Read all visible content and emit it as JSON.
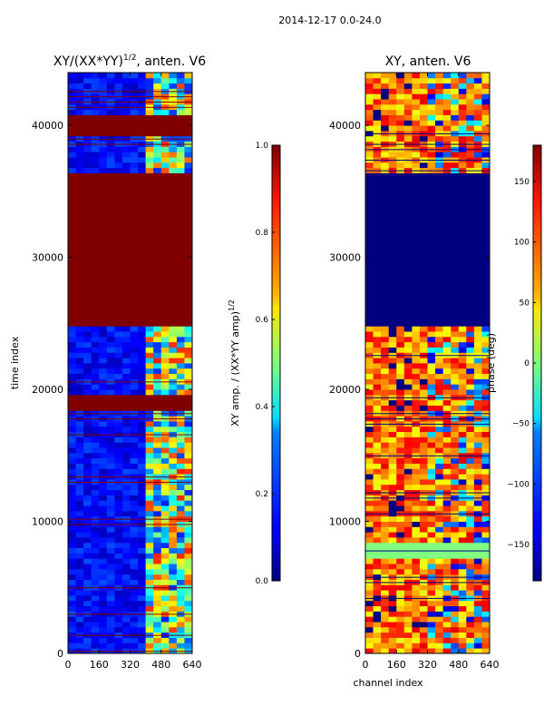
{
  "suptitle": "2014-12-17 0.0-24.0",
  "chart_data": [
    {
      "type": "heatmap",
      "title": "XY/(XX*YY)^{1/2}, anten. V6",
      "title_main": "XY/(XX*YY)",
      "title_sup": "1/2",
      "title_tail": ", anten. V6",
      "xlabel": "",
      "ylabel": "time index",
      "xlim": [
        0,
        640
      ],
      "ylim": [
        0,
        44000
      ],
      "xticks": [
        0,
        160,
        320,
        480,
        640
      ],
      "yticks": [
        0,
        10000,
        20000,
        30000,
        40000
      ],
      "colormap": "jet",
      "colorbar": {
        "label": "XY amp. / (XX*YY amp)^{1/2}",
        "label_main": "XY amp. / (XX*YY amp)",
        "label_sup": "1/2",
        "range": [
          0.0,
          1.0
        ],
        "ticks": [
          "0.0",
          "0.2",
          "0.4",
          "0.6",
          "0.8",
          "1.0"
        ]
      },
      "features": [
        {
          "description": "saturated (1.0) block",
          "time_range": [
            24800,
            36400
          ],
          "channel_range": [
            0,
            640
          ]
        },
        {
          "description": "saturated band",
          "time_range": [
            18600,
            19600
          ],
          "channel_range": [
            0,
            640
          ]
        },
        {
          "description": "saturated band",
          "time_range": [
            39300,
            40600
          ],
          "channel_range": [
            0,
            640
          ]
        },
        {
          "description": "high-variance region",
          "time_range": [
            0,
            44000
          ],
          "channel_range": [
            400,
            620
          ]
        }
      ]
    },
    {
      "type": "heatmap",
      "title": "XY, anten. V6",
      "xlabel": "channel index",
      "ylabel": "",
      "xlim": [
        0,
        640
      ],
      "ylim": [
        0,
        44000
      ],
      "xticks": [
        0,
        160,
        320,
        480,
        640
      ],
      "yticks": [
        0,
        10000,
        20000,
        30000,
        40000
      ],
      "colormap": "jet",
      "colorbar": {
        "label": "phase (deg)",
        "range": [
          -180,
          180
        ],
        "ticks": [
          "-150",
          "-100",
          "-50",
          "0",
          "50",
          "100",
          "150"
        ]
      },
      "features": [
        {
          "description": "phase -180 block",
          "time_range": [
            24800,
            36400
          ],
          "channel_range": [
            0,
            640
          ]
        },
        {
          "description": "phase near 0 band",
          "time_range": [
            7400,
            8200
          ],
          "channel_range": [
            0,
            640
          ]
        }
      ]
    }
  ]
}
